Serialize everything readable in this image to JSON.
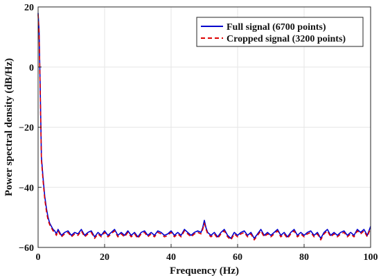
{
  "chart_data": {
    "type": "line",
    "title": "",
    "xlabel": "Frequency (Hz)",
    "ylabel": "Power spectral density (dB/Hz)",
    "xlim": [
      0,
      100
    ],
    "ylim": [
      -60,
      20
    ],
    "xticks": [
      0,
      20,
      40,
      60,
      80,
      100
    ],
    "yticks": [
      -60,
      -40,
      -20,
      0,
      20
    ],
    "xtick_labels": [
      "0",
      "20",
      "40",
      "60",
      "80",
      "100"
    ],
    "ytick_labels": [
      "−60",
      "−40",
      "−20",
      "0",
      "20"
    ],
    "grid": true,
    "legend_position": "top-right",
    "series": [
      {
        "name": "Full signal (6700 points)",
        "color": "#0000cc",
        "style": "solid",
        "x": [
          0,
          0.3,
          0.6,
          1,
          1.5,
          2,
          2.5,
          3,
          3.5,
          4,
          4.5,
          5,
          5.5,
          6,
          7,
          8,
          9,
          10,
          11,
          12,
          13,
          14,
          15,
          16,
          17,
          18,
          19,
          20,
          21,
          22,
          23,
          24,
          25,
          26,
          27,
          28,
          29,
          30,
          31,
          32,
          33,
          34,
          35,
          36,
          37,
          38,
          39,
          40,
          41,
          42,
          43,
          44,
          45,
          46,
          47,
          48,
          49,
          49.5,
          50,
          50.5,
          51,
          52,
          53,
          54,
          55,
          56,
          57,
          58,
          59,
          60,
          61,
          62,
          63,
          64,
          65,
          66,
          67,
          68,
          69,
          70,
          71,
          72,
          73,
          74,
          75,
          76,
          77,
          78,
          79,
          80,
          81,
          82,
          83,
          84,
          85,
          86,
          87,
          88,
          89,
          90,
          91,
          92,
          93,
          94,
          95,
          96,
          97,
          98,
          99,
          100
        ],
        "y": [
          18,
          12,
          -5,
          -30,
          -37,
          -43,
          -47,
          -50,
          -52,
          -53,
          -54,
          -54.5,
          -55.5,
          -54,
          -56,
          -55,
          -54.5,
          -56,
          -55,
          -55.5,
          -54,
          -56,
          -55,
          -54.5,
          -56.5,
          -55,
          -56,
          -54.5,
          -56,
          -55,
          -54,
          -56,
          -55,
          -56,
          -54.5,
          -56,
          -55,
          -56.5,
          -55,
          -54.5,
          -56,
          -55,
          -56,
          -54.5,
          -55,
          -56,
          -55.5,
          -54.5,
          -56,
          -55,
          -56,
          -54,
          -55,
          -56,
          -55,
          -54.5,
          -55,
          -53.5,
          -51,
          -53.5,
          -55,
          -56,
          -55,
          -56.5,
          -55,
          -54,
          -56,
          -57,
          -55,
          -56,
          -55,
          -54.5,
          -56,
          -55,
          -57,
          -55.5,
          -54,
          -56,
          -55,
          -56,
          -55,
          -54,
          -56,
          -55,
          -56.5,
          -55,
          -54,
          -56,
          -55,
          -56,
          -55,
          -54.5,
          -56,
          -55,
          -57,
          -55,
          -54,
          -56,
          -55,
          -56,
          -55,
          -54.5,
          -56,
          -55,
          -56,
          -54,
          -55,
          -54,
          -56,
          -53
        ]
      },
      {
        "name": "Cropped signal (3200 points)",
        "color": "#dd0000",
        "style": "dashed",
        "x": [
          0,
          0.3,
          0.6,
          1,
          1.5,
          2,
          2.5,
          3,
          3.5,
          4,
          4.5,
          5,
          5.5,
          6,
          7,
          8,
          9,
          10,
          11,
          12,
          13,
          14,
          15,
          16,
          17,
          18,
          19,
          20,
          21,
          22,
          23,
          24,
          25,
          26,
          27,
          28,
          29,
          30,
          31,
          32,
          33,
          34,
          35,
          36,
          37,
          38,
          39,
          40,
          41,
          42,
          43,
          44,
          45,
          46,
          47,
          48,
          49,
          49.5,
          50,
          50.5,
          51,
          52,
          53,
          54,
          55,
          56,
          57,
          58,
          59,
          60,
          61,
          62,
          63,
          64,
          65,
          66,
          67,
          68,
          69,
          70,
          71,
          72,
          73,
          74,
          75,
          76,
          77,
          78,
          79,
          80,
          81,
          82,
          83,
          84,
          85,
          86,
          87,
          88,
          89,
          90,
          91,
          92,
          93,
          94,
          95,
          96,
          97,
          98,
          99,
          100
        ],
        "y": [
          17.5,
          11,
          -6,
          -31,
          -38,
          -44,
          -48,
          -51,
          -52.5,
          -53.5,
          -54.5,
          -55,
          -56,
          -54.5,
          -56.5,
          -55.5,
          -55,
          -56.5,
          -55.5,
          -56,
          -54.5,
          -56.5,
          -55.5,
          -55,
          -57,
          -55.5,
          -56.5,
          -55,
          -56.5,
          -55.5,
          -54.5,
          -56.5,
          -55.5,
          -56.5,
          -55,
          -56.5,
          -55.5,
          -57,
          -55.5,
          -55,
          -56.5,
          -55.5,
          -56.5,
          -55,
          -55.5,
          -56.5,
          -56,
          -55,
          -56.5,
          -55.5,
          -56.5,
          -54.5,
          -55.5,
          -56.5,
          -55.5,
          -55,
          -55.5,
          -54,
          -52,
          -54,
          -55.5,
          -56.5,
          -55.5,
          -57,
          -55.5,
          -54.5,
          -56.5,
          -57.5,
          -55.5,
          -56.5,
          -55.5,
          -55,
          -56.5,
          -55.5,
          -57.5,
          -56,
          -54.5,
          -56.5,
          -55.5,
          -56.5,
          -55.5,
          -54.5,
          -56.5,
          -55.5,
          -57,
          -55.5,
          -54.5,
          -56.5,
          -55.5,
          -56.5,
          -55.5,
          -55,
          -56.5,
          -55.5,
          -57.5,
          -55.5,
          -54.5,
          -56.5,
          -55.5,
          -56.5,
          -55.5,
          -55,
          -56.5,
          -55.5,
          -56.5,
          -54.5,
          -55.5,
          -54.5,
          -56.5,
          -53.5
        ]
      }
    ]
  }
}
